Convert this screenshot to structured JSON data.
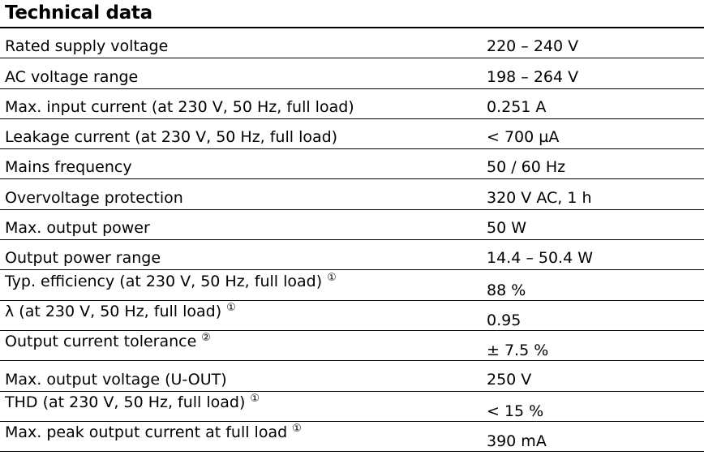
{
  "header": {
    "title": "Technical data"
  },
  "rows": [
    {
      "label": "Rated supply voltage",
      "value": "220 – 240 V",
      "note": ""
    },
    {
      "label": "AC voltage range",
      "value": "198 – 264 V",
      "note": ""
    },
    {
      "label": "Max. input current (at 230 V, 50 Hz, full load)",
      "value": "0.251 A",
      "note": ""
    },
    {
      "label": "Leakage current (at 230 V, 50 Hz, full load)",
      "value": "< 700 µA",
      "note": ""
    },
    {
      "label": "Mains frequency",
      "value": "50 / 60 Hz",
      "note": ""
    },
    {
      "label": "Overvoltage protection",
      "value": "320 V AC, 1 h",
      "note": ""
    },
    {
      "label": "Max. output power",
      "value": "50 W",
      "note": ""
    },
    {
      "label": "Output power range",
      "value": "14.4 – 50.4 W",
      "note": ""
    },
    {
      "label": "Typ. efficiency (at 230 V, 50 Hz, full load)",
      "value": "88 %",
      "note": "①"
    },
    {
      "label": "λ (at 230 V, 50 Hz, full load)",
      "value": "0.95",
      "note": "①"
    },
    {
      "label": "Output current tolerance",
      "value": "± 7.5 %",
      "note": "②"
    },
    {
      "label": "Max. output voltage (U-OUT)",
      "value": "250 V",
      "note": ""
    },
    {
      "label": "THD (at 230 V, 50 Hz, full load)",
      "value": "< 15 %",
      "note": "①"
    },
    {
      "label": "Max. peak output current at full load",
      "value": "390 mA",
      "note": "①"
    }
  ]
}
